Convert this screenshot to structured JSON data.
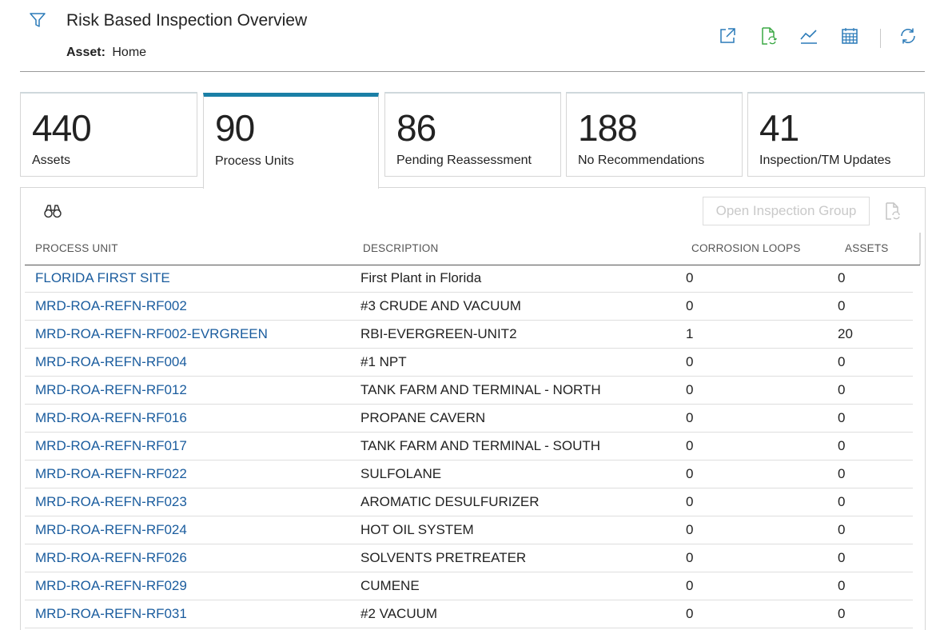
{
  "header": {
    "title": "Risk Based Inspection Overview",
    "asset_label": "Asset:",
    "asset_value": "Home"
  },
  "colors": {
    "accent": "#1a7fa6",
    "link": "#1a5c9e",
    "icon_blue": "#2a7ab8",
    "icon_green": "#3aa844"
  },
  "toolbar": {
    "icons": [
      "open-external-icon",
      "document-refresh-icon",
      "trend-chart-icon",
      "calendar-icon",
      "refresh-icon"
    ]
  },
  "tiles": [
    {
      "count": "440",
      "label": "Assets",
      "active": false
    },
    {
      "count": "90",
      "label": "Process Units",
      "active": true
    },
    {
      "count": "86",
      "label": "Pending Reassessment",
      "active": false
    },
    {
      "count": "188",
      "label": "No Recommendations",
      "active": false
    },
    {
      "count": "41",
      "label": "Inspection/TM Updates",
      "active": false
    }
  ],
  "panel": {
    "open_group_label": "Open Inspection Group"
  },
  "table": {
    "columns": [
      "PROCESS UNIT",
      "DESCRIPTION",
      "CORROSION LOOPS",
      "ASSETS"
    ],
    "rows": [
      {
        "unit": "FLORIDA FIRST SITE",
        "description": "First Plant in Florida",
        "loops": "0",
        "assets": "0"
      },
      {
        "unit": "MRD-ROA-REFN-RF002",
        "description": "#3 CRUDE AND VACUUM",
        "loops": "0",
        "assets": "0"
      },
      {
        "unit": "MRD-ROA-REFN-RF002-EVRGREEN",
        "description": "RBI-EVERGREEN-UNIT2",
        "loops": "1",
        "assets": "20"
      },
      {
        "unit": "MRD-ROA-REFN-RF004",
        "description": "#1 NPT",
        "loops": "0",
        "assets": "0"
      },
      {
        "unit": "MRD-ROA-REFN-RF012",
        "description": "TANK FARM AND TERMINAL - NORTH",
        "loops": "0",
        "assets": "0"
      },
      {
        "unit": "MRD-ROA-REFN-RF016",
        "description": "PROPANE CAVERN",
        "loops": "0",
        "assets": "0"
      },
      {
        "unit": "MRD-ROA-REFN-RF017",
        "description": "TANK FARM AND TERMINAL - SOUTH",
        "loops": "0",
        "assets": "0"
      },
      {
        "unit": "MRD-ROA-REFN-RF022",
        "description": "SULFOLANE",
        "loops": "0",
        "assets": "0"
      },
      {
        "unit": "MRD-ROA-REFN-RF023",
        "description": "AROMATIC DESULFURIZER",
        "loops": "0",
        "assets": "0"
      },
      {
        "unit": "MRD-ROA-REFN-RF024",
        "description": "HOT OIL SYSTEM",
        "loops": "0",
        "assets": "0"
      },
      {
        "unit": "MRD-ROA-REFN-RF026",
        "description": "SOLVENTS PRETREATER",
        "loops": "0",
        "assets": "0"
      },
      {
        "unit": "MRD-ROA-REFN-RF029",
        "description": "CUMENE",
        "loops": "0",
        "assets": "0"
      },
      {
        "unit": "MRD-ROA-REFN-RF031",
        "description": "#2 VACUUM",
        "loops": "0",
        "assets": "0"
      }
    ]
  }
}
